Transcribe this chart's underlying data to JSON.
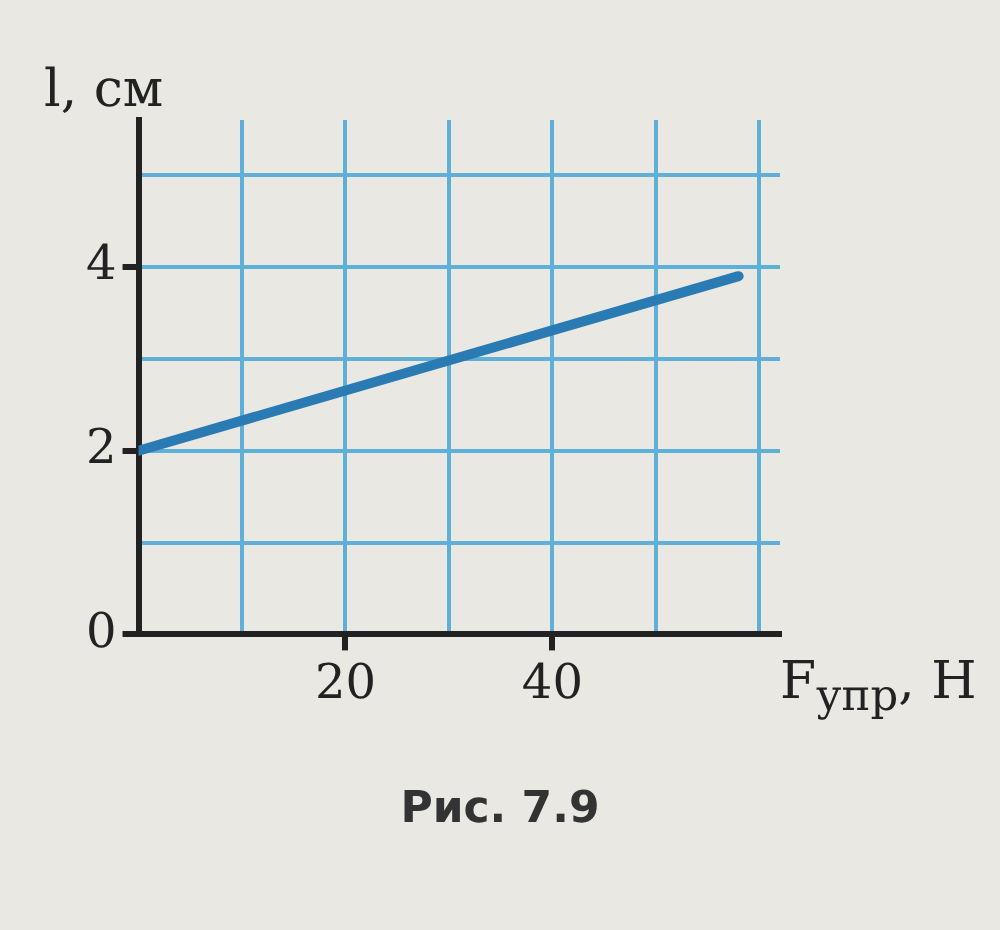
{
  "chart_data": {
    "type": "line",
    "xlabel": "F$_{упр}$, Н",
    "ylabel": "l, см",
    "annotations": [
      "Рис. 7.9"
    ],
    "x": [
      0,
      58
    ],
    "series": [
      {
        "color": "#2a7bb3",
        "values": [
          2,
          3.9
        ]
      }
    ],
    "xlim": [
      0,
      62
    ],
    "xticks": [
      {
        "value": 0,
        "label": null
      },
      {
        "value": 10,
        "label": null
      },
      20,
      {
        "value": 30,
        "label": null
      },
      40,
      {
        "value": 50,
        "label": null
      },
      {
        "value": 60,
        "label": null
      }
    ],
    "ylim": [
      0,
      5.6
    ],
    "yticks": [
      0,
      {
        "value": 1,
        "label": null
      },
      2,
      {
        "value": 3,
        "label": null
      },
      4,
      {
        "value": 5,
        "label": null
      }
    ],
    "grid": true,
    "legend": false,
    "marker": "none",
    "line_style": "solid"
  }
}
